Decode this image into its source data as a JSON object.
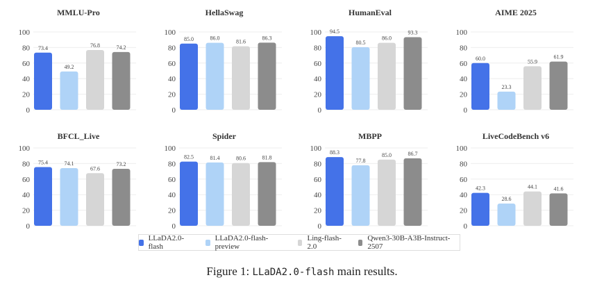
{
  "chart_data": [
    {
      "type": "bar",
      "title": "MMLU-Pro",
      "values": [
        73.4,
        49.2,
        76.8,
        74.2
      ],
      "ylim": [
        0,
        100
      ],
      "yticks": [
        0,
        20,
        40,
        60,
        80,
        100
      ]
    },
    {
      "type": "bar",
      "title": "HellaSwag",
      "values": [
        85.0,
        86.0,
        81.6,
        86.3
      ],
      "ylim": [
        0,
        100
      ],
      "yticks": [
        0,
        20,
        40,
        60,
        80,
        100
      ]
    },
    {
      "type": "bar",
      "title": "HumanEval",
      "values": [
        94.5,
        80.5,
        86.0,
        93.3
      ],
      "ylim": [
        0,
        100
      ],
      "yticks": [
        0,
        20,
        40,
        60,
        80,
        100
      ]
    },
    {
      "type": "bar",
      "title": "AIME 2025",
      "values": [
        60.0,
        23.3,
        55.9,
        61.9
      ],
      "ylim": [
        0,
        100
      ],
      "yticks": [
        0,
        20,
        40,
        60,
        80,
        100
      ]
    },
    {
      "type": "bar",
      "title": "BFCL_Live",
      "values": [
        75.4,
        74.1,
        67.6,
        73.2
      ],
      "ylim": [
        0,
        100
      ],
      "yticks": [
        0,
        20,
        40,
        60,
        80,
        100
      ]
    },
    {
      "type": "bar",
      "title": "Spider",
      "values": [
        82.5,
        81.4,
        80.6,
        81.8
      ],
      "ylim": [
        0,
        100
      ],
      "yticks": [
        0,
        20,
        40,
        60,
        80,
        100
      ]
    },
    {
      "type": "bar",
      "title": "MBPP",
      "values": [
        88.3,
        77.8,
        85.0,
        86.7
      ],
      "ylim": [
        0,
        100
      ],
      "yticks": [
        0,
        20,
        40,
        60,
        80,
        100
      ]
    },
    {
      "type": "bar",
      "title": "LiveCodeBench v6",
      "values": [
        42.3,
        28.6,
        44.1,
        41.6
      ],
      "ylim": [
        0,
        100
      ],
      "yticks": [
        0,
        20,
        40,
        60,
        80,
        100
      ]
    }
  ],
  "legend": {
    "placement": "bottom",
    "series": [
      {
        "name": "LLaDA2.0-flash",
        "color": "#4472e8"
      },
      {
        "name": "LLaDA2.0-flash-preview",
        "color": "#afd3f7"
      },
      {
        "name": "Ling-flash-2.0",
        "color": "#d6d6d6"
      },
      {
        "name": "Qwen3-30B-A3B-Instruct-2507",
        "color": "#8c8c8c"
      }
    ]
  },
  "caption": {
    "prefix": "Figure 1: ",
    "code": "LLaDA2.0-flash",
    "suffix": " main results."
  }
}
